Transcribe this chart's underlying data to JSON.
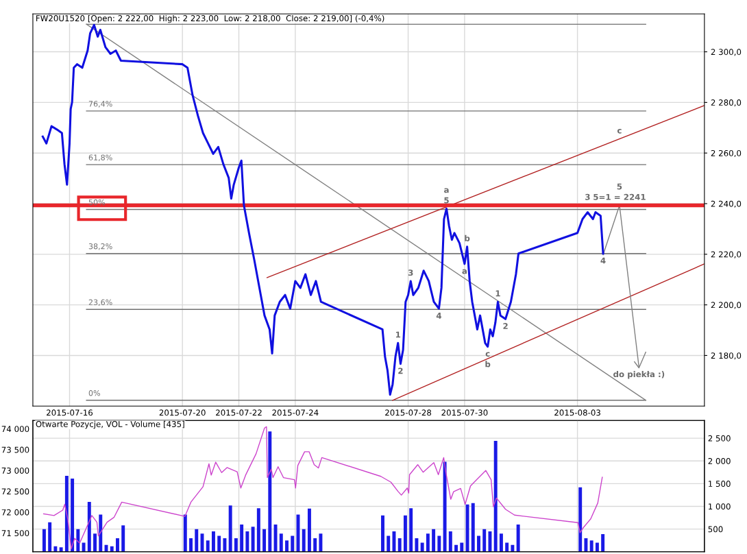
{
  "chart_data": [
    {
      "type": "line",
      "title": "FW20U1520 [Open: 2 222,00  High: 2 223,00  Low: 2 218,00  Close: 2 219,00] (-0,4%)",
      "xlim": [
        "2015-07-14T16:48",
        "2015-08-07T12:00"
      ],
      "xticks": [
        "2015-07-16",
        "2015-07-20",
        "2015-07-22",
        "2015-07-24",
        "2015-07-28",
        "2015-07-30",
        "2015-08-03"
      ],
      "ylim": [
        2160,
        2315
      ],
      "yticks": [
        {
          "value": 2180,
          "label": "2 180,0"
        },
        {
          "value": 2200,
          "label": "2 200,0"
        },
        {
          "value": 2220,
          "label": "2 220,0"
        },
        {
          "value": 2240,
          "label": "2 240,0"
        },
        {
          "value": 2260,
          "label": "2 260,0"
        },
        {
          "value": 2280,
          "label": "2 280,0"
        },
        {
          "value": 2300,
          "label": "2 300,0"
        }
      ],
      "grid": true,
      "series": [
        {
          "color": "#1010e0",
          "x": [
            "2015-07-15T01:12",
            "2015-07-15T04:19",
            "2015-07-15T08:38",
            "2015-07-15T13:12",
            "2015-07-15T17:31",
            "2015-07-15T19:41",
            "2015-07-15T21:50",
            "2015-07-16T00:00",
            "2015-07-16T00:58",
            "2015-07-16T02:10",
            "2015-07-16T03:36",
            "2015-07-16T06:29",
            "2015-07-16T10:48",
            "2015-07-16T15:22",
            "2015-07-16T17:31",
            "2015-07-16T20:53",
            "2015-07-17T00:00",
            "2015-07-17T02:10",
            "2015-07-17T06:29",
            "2015-07-17T10:48",
            "2015-07-17T15:22",
            "2015-07-17T19:41",
            "2015-07-20T00:00",
            "2015-07-20T04:19",
            "2015-07-20T08:38",
            "2015-07-20T13:12",
            "2015-07-20T17:31",
            "2015-07-20T21:50",
            "2015-07-21T02:10",
            "2015-07-21T06:29",
            "2015-07-21T10:48",
            "2015-07-21T15:22",
            "2015-07-21T17:31",
            "2015-07-21T19:41",
            "2015-07-22T00:00",
            "2015-07-22T02:10",
            "2015-07-22T04:19",
            "2015-07-22T08:38",
            "2015-07-22T13:12",
            "2015-07-22T17:31",
            "2015-07-22T21:50",
            "2015-07-23T02:10",
            "2015-07-23T04:19",
            "2015-07-23T06:29",
            "2015-07-23T10:48",
            "2015-07-23T15:22",
            "2015-07-23T19:41",
            "2015-07-24T00:00",
            "2015-07-24T04:19",
            "2015-07-24T08:38",
            "2015-07-24T13:12",
            "2015-07-24T17:31",
            "2015-07-24T21:50",
            "2015-07-27T02:10",
            "2015-07-27T04:19",
            "2015-07-27T06:29",
            "2015-07-27T08:38",
            "2015-07-27T10:48",
            "2015-07-27T13:12",
            "2015-07-27T15:22",
            "2015-07-27T17:31",
            "2015-07-27T19:41",
            "2015-07-27T21:50",
            "2015-07-28T00:00",
            "2015-07-28T02:10",
            "2015-07-28T04:19",
            "2015-07-28T08:38",
            "2015-07-28T13:12",
            "2015-07-28T17:31",
            "2015-07-28T21:50",
            "2015-07-29T02:10",
            "2015-07-29T04:19",
            "2015-07-29T06:29",
            "2015-07-29T08:38",
            "2015-07-29T10:48",
            "2015-07-29T13:12",
            "2015-07-29T15:22",
            "2015-07-29T19:41",
            "2015-07-30T00:00",
            "2015-07-30T02:10",
            "2015-07-30T04:19",
            "2015-07-30T06:29",
            "2015-07-30T08:38",
            "2015-07-30T10:48",
            "2015-07-30T13:12",
            "2015-07-30T17:31",
            "2015-07-30T19:41",
            "2015-07-30T21:50",
            "2015-07-31T00:00",
            "2015-07-31T02:10",
            "2015-07-31T04:19",
            "2015-07-31T06:29",
            "2015-07-31T10:48",
            "2015-07-31T15:22",
            "2015-07-31T19:41",
            "2015-07-31T21:50",
            "2015-08-03T00:00",
            "2015-08-03T04:19",
            "2015-08-03T08:38",
            "2015-08-03T13:12",
            "2015-08-03T15:22",
            "2015-08-03T19:41",
            "2015-08-03T21:50"
          ],
          "values": [
            2266.5,
            2263.8,
            2270.6,
            2269.3,
            2267.9,
            2255.6,
            2247.5,
            2263.8,
            2277.4,
            2280.1,
            2293.7,
            2295.1,
            2293.7,
            2300.5,
            2307.3,
            2310.6,
            2306.0,
            2308.7,
            2301.9,
            2299.2,
            2300.5,
            2296.5,
            2295.1,
            2293.7,
            2282.9,
            2274.7,
            2267.9,
            2263.8,
            2259.7,
            2262.4,
            2255.6,
            2250.2,
            2242.0,
            2247.5,
            2254.3,
            2257.0,
            2239.3,
            2228.4,
            2217.6,
            2206.7,
            2195.8,
            2190.3,
            2180.8,
            2195.8,
            2201.2,
            2203.9,
            2198.5,
            2209.4,
            2206.7,
            2212.1,
            2203.9,
            2209.4,
            2201.2,
            2190.3,
            2179.5,
            2174.0,
            2164.5,
            2168.6,
            2179.5,
            2184.9,
            2176.7,
            2182.2,
            2201.2,
            2203.9,
            2209.4,
            2203.9,
            2206.7,
            2213.5,
            2209.4,
            2201.2,
            2198.5,
            2206.7,
            2233.9,
            2238.0,
            2231.2,
            2225.7,
            2228.4,
            2224.4,
            2216.2,
            2223.0,
            2209.4,
            2201.2,
            2195.8,
            2190.3,
            2195.8,
            2184.9,
            2183.5,
            2190.3,
            2187.6,
            2192.9,
            2201.2,
            2195.8,
            2194.4,
            2201.2,
            2212.1,
            2220.3,
            2228.4,
            2233.9,
            2236.6,
            2233.9,
            2236.6,
            2235.2,
            2220.3
          ]
        },
        {
          "color": "#707070",
          "x": [
            "2015-07-16T14:24",
            "2015-08-05T10:05"
          ],
          "values": [
            2310.9,
            2310.9
          ]
        },
        {
          "color": "#707070",
          "x": [
            "2015-07-16T14:24",
            "2015-08-05T10:05"
          ],
          "values": [
            2276.6,
            2276.6
          ]
        },
        {
          "color": "#707070",
          "x": [
            "2015-07-16T14:24",
            "2015-08-05T10:05"
          ],
          "values": [
            2255.4,
            2255.4
          ]
        },
        {
          "color": "#707070",
          "x": [
            "2015-07-16T14:24",
            "2015-08-05T10:05"
          ],
          "values": [
            2237.7,
            2237.7
          ]
        },
        {
          "color": "#707070",
          "x": [
            "2015-07-16T14:24",
            "2015-08-05T10:05"
          ],
          "values": [
            2220.3,
            2220.3
          ]
        },
        {
          "color": "#707070",
          "x": [
            "2015-07-16T14:24",
            "2015-08-05T10:05"
          ],
          "values": [
            2198.2,
            2198.2
          ]
        },
        {
          "color": "#707070",
          "x": [
            "2015-07-16T14:24",
            "2015-08-05T10:05"
          ],
          "values": [
            2162.3,
            2162.3
          ]
        },
        {
          "color": "#808080",
          "x": [
            "2015-07-16T14:24",
            "2015-08-05T10:05"
          ],
          "values": [
            2310.9,
            2162.3
          ]
        },
        {
          "color": "#b22222",
          "x": [
            "2015-07-23T00:00",
            "2015-08-07T12:00"
          ],
          "values": [
            2210.8,
            2278.8
          ]
        },
        {
          "color": "#b22222",
          "x": [
            "2015-07-27T10:48",
            "2015-08-07T12:00"
          ],
          "values": [
            2162.3,
            2216.2
          ]
        },
        {
          "color": "#808080",
          "x": [
            "2015-08-03T21:50",
            "2015-08-04T11:46",
            "2015-08-05T04:19"
          ],
          "values": [
            2219.8,
            2239.3,
            2175.4
          ]
        },
        {
          "color": "#808080",
          "x": [
            "2015-08-05T00:29",
            "2015-08-05T04:19",
            "2015-08-05T10:05"
          ],
          "values": [
            2177.5,
            2175.1,
            2181.3
          ]
        }
      ],
      "ref_lines": [
        {
          "axis": "y",
          "value": 2239.3,
          "color": "#e8262b"
        }
      ],
      "annotations": [
        {
          "text": "76,4%",
          "x": "2015-07-16T14:24",
          "y": 2276.6
        },
        {
          "text": "61,8%",
          "x": "2015-07-16T14:24",
          "y": 2255.4
        },
        {
          "text": "50%",
          "x": "2015-07-16T14:24",
          "y": 2237.7
        },
        {
          "text": "38,2%",
          "x": "2015-07-16T14:24",
          "y": 2220.3
        },
        {
          "text": "23,6%",
          "x": "2015-07-16T14:24",
          "y": 2198.2
        },
        {
          "text": "0%",
          "x": "2015-07-16T14:24",
          "y": 2162.3
        },
        {
          "text": "5",
          "x": "2015-07-29T08:38",
          "y": 2238.0
        },
        {
          "text": "a",
          "x": "2015-07-29T08:38",
          "y": 2238.0
        },
        {
          "text": "b",
          "x": "2015-07-30T02:10",
          "y": 2223.0
        },
        {
          "text": "a",
          "x": "2015-07-30T00:00",
          "y": 2216.2
        },
        {
          "text": "3",
          "x": "2015-07-28T02:10",
          "y": 2209.4
        },
        {
          "text": "4",
          "x": "2015-07-29T02:10",
          "y": 2198.5
        },
        {
          "text": "1",
          "x": "2015-07-27T15:22",
          "y": 2184.9
        },
        {
          "text": "2",
          "x": "2015-07-27T17:31",
          "y": 2176.7
        },
        {
          "text": "c",
          "x": "2015-07-30T19:41",
          "y": 2183.5
        },
        {
          "text": "b",
          "x": "2015-07-30T19:41",
          "y": 2183.5
        },
        {
          "text": "1",
          "x": "2015-07-31T04:19",
          "y": 2201.2
        },
        {
          "text": "2",
          "x": "2015-07-31T10:48",
          "y": 2194.4
        },
        {
          "text": "3",
          "x": "2015-08-03T08:38",
          "y": 2239.3
        },
        {
          "text": "4",
          "x": "2015-08-03T21:50",
          "y": 2220.3
        },
        {
          "text": "5=1 = 2241",
          "x": "2015-08-04T11:46",
          "y": 2239.3
        },
        {
          "text": "5",
          "x": "2015-08-04T11:46",
          "y": 2239.3
        },
        {
          "text": "c",
          "x": "2015-08-04T11:46",
          "y": 2265.6
        },
        {
          "text": "do piekła :)",
          "x": "2015-08-05T04:19",
          "y": 2175.4
        }
      ]
    },
    {
      "type": "line",
      "title": "Otwarte Pozycje, VOL - Volume [435]",
      "xlim": [
        "2015-07-14T16:48",
        "2015-08-07T12:00"
      ],
      "xticks": [
        "2015-07-16",
        "2015-07-20",
        "2015-07-22",
        "2015-07-24",
        "2015-07-28",
        "2015-07-30",
        "2015-08-03"
      ],
      "tick_labels": "y",
      "ylim": [
        71050,
        74200
      ],
      "yticks": [
        {
          "value": 71500,
          "label": "71 500"
        },
        {
          "value": 72000,
          "label": "72 000"
        },
        {
          "value": 72500,
          "label": "72 500"
        },
        {
          "value": 73000,
          "label": "73 000"
        },
        {
          "value": 73500,
          "label": "73 500"
        },
        {
          "value": 74000,
          "label": "74 000"
        }
      ],
      "y2lim": [
        0,
        2890
      ],
      "y2ticks": [
        500,
        {
          "value": 1000,
          "label": "1 000"
        },
        {
          "value": 1500,
          "label": "1 500"
        },
        {
          "value": 2000,
          "label": "2 000"
        },
        {
          "value": 2500,
          "label": "2 500"
        }
      ],
      "grid": true,
      "series": [
        {
          "type": "bar",
          "axis": "y2",
          "color": "#1a1ae6",
          "x": [
            "2015-07-15T02:24",
            "2015-07-15T07:12",
            "2015-07-15T12:00",
            "2015-07-15T16:48",
            "2015-07-15T21:36",
            "2015-07-16T02:24",
            "2015-07-16T07:12",
            "2015-07-16T12:00",
            "2015-07-16T16:48",
            "2015-07-16T21:36",
            "2015-07-17T02:24",
            "2015-07-17T07:12",
            "2015-07-17T12:00",
            "2015-07-17T16:48",
            "2015-07-17T21:36",
            "2015-07-20T02:24",
            "2015-07-20T07:12",
            "2015-07-20T12:00",
            "2015-07-20T16:48",
            "2015-07-20T21:36",
            "2015-07-21T02:24",
            "2015-07-21T07:12",
            "2015-07-21T12:00",
            "2015-07-21T16:48",
            "2015-07-21T21:36",
            "2015-07-22T02:24",
            "2015-07-22T07:12",
            "2015-07-22T12:00",
            "2015-07-22T16:48",
            "2015-07-22T21:36",
            "2015-07-23T02:24",
            "2015-07-23T07:12",
            "2015-07-23T12:00",
            "2015-07-23T16:48",
            "2015-07-23T21:36",
            "2015-07-24T02:24",
            "2015-07-24T07:12",
            "2015-07-24T12:00",
            "2015-07-24T16:48",
            "2015-07-24T21:36",
            "2015-07-27T02:24",
            "2015-07-27T07:12",
            "2015-07-27T12:00",
            "2015-07-27T16:48",
            "2015-07-27T21:36",
            "2015-07-28T02:24",
            "2015-07-28T07:12",
            "2015-07-28T12:00",
            "2015-07-28T16:48",
            "2015-07-28T21:36",
            "2015-07-29T02:24",
            "2015-07-29T07:12",
            "2015-07-29T12:00",
            "2015-07-29T16:48",
            "2015-07-29T21:36",
            "2015-07-30T02:24",
            "2015-07-30T07:12",
            "2015-07-30T12:00",
            "2015-07-30T16:48",
            "2015-07-30T21:36",
            "2015-07-31T02:24",
            "2015-07-31T07:12",
            "2015-07-31T12:00",
            "2015-07-31T16:48",
            "2015-07-31T21:36",
            "2015-08-03T02:24",
            "2015-08-03T07:12",
            "2015-08-03T12:00",
            "2015-08-03T16:48",
            "2015-08-03T21:36"
          ],
          "values": [
            500,
            650,
            120,
            100,
            1670,
            1610,
            500,
            200,
            1100,
            400,
            820,
            150,
            120,
            300,
            580,
            820,
            300,
            500,
            400,
            250,
            450,
            350,
            300,
            1020,
            300,
            600,
            450,
            550,
            960,
            500,
            2650,
            600,
            400,
            250,
            350,
            820,
            500,
            950,
            300,
            400,
            800,
            350,
            450,
            300,
            800,
            960,
            300,
            200,
            400,
            500,
            350,
            1980,
            450,
            150,
            200,
            1040,
            1070,
            350,
            500,
            450,
            2440,
            400,
            200,
            150,
            600,
            1420,
            300,
            250,
            200,
            390
          ]
        },
        {
          "type": "line",
          "axis": "y",
          "color": "#cc44cc",
          "x": [
            "2015-07-15T01:55",
            "2015-07-15T10:48",
            "2015-07-15T18:14",
            "2015-07-15T19:55",
            "2015-07-15T22:34",
            "2015-07-16T01:26",
            "2015-07-16T04:19",
            "2015-07-16T08:38",
            "2015-07-16T18:58",
            "2015-07-16T23:17",
            "2015-07-17T00:29",
            "2015-07-17T07:55",
            "2015-07-17T13:55",
            "2015-07-17T20:24",
            "2015-07-20T02:10",
            "2015-07-20T07:12",
            "2015-07-20T17:31",
            "2015-07-20T22:34",
            "2015-07-21T00:29",
            "2015-07-21T04:19",
            "2015-07-21T09:22",
            "2015-07-21T13:55",
            "2015-07-21T22:34",
            "2015-07-22T01:41",
            "2015-07-22T05:46",
            "2015-07-22T14:38",
            "2015-07-22T21:50",
            "2015-07-22T23:31",
            "2015-07-23T00:14",
            "2015-07-23T03:36",
            "2015-07-23T05:02",
            "2015-07-23T09:22",
            "2015-07-23T13:55",
            "2015-07-23T23:17",
            "2015-07-24T00:14",
            "2015-07-24T02:10",
            "2015-07-24T07:55",
            "2015-07-24T11:46",
            "2015-07-24T16:05",
            "2015-07-24T19:41",
            "2015-07-24T22:34",
            "2015-07-27T00:43",
            "2015-07-27T09:22",
            "2015-07-27T15:22",
            "2015-07-27T18:14",
            "2015-07-27T23:17",
            "2015-07-28T00:29",
            "2015-07-28T01:12",
            "2015-07-28T08:10",
            "2015-07-28T12:43",
            "2015-07-28T18:43",
            "2015-07-28T21:50",
            "2015-07-29T01:41",
            "2015-07-29T06:14",
            "2015-07-29T07:41",
            "2015-07-29T12:14",
            "2015-07-29T14:38",
            "2015-07-29T20:38",
            "2015-07-30T00:29",
            "2015-07-30T05:02",
            "2015-07-30T10:19",
            "2015-07-30T18:00",
            "2015-07-30T22:34",
            "2015-07-31T00:29",
            "2015-07-31T03:07",
            "2015-07-31T10:48",
            "2015-07-31T18:29",
            "2015-08-03T00:29",
            "2015-08-03T02:10",
            "2015-08-03T05:02",
            "2015-08-03T11:17",
            "2015-08-03T17:17",
            "2015-08-03T21:07"
          ],
          "values": [
            71960,
            71920,
            72050,
            72190,
            71820,
            71120,
            71370,
            71260,
            71920,
            71760,
            71430,
            71760,
            71880,
            72240,
            71900,
            72240,
            72610,
            73160,
            72890,
            73200,
            72950,
            73070,
            72970,
            72580,
            72890,
            73400,
            74020,
            74050,
            72830,
            73030,
            72830,
            73090,
            72830,
            72780,
            72580,
            73120,
            73450,
            73450,
            73140,
            73060,
            73310,
            72860,
            72720,
            72500,
            72410,
            72580,
            72460,
            72900,
            73140,
            72960,
            73110,
            73190,
            72900,
            73310,
            73020,
            72310,
            72490,
            72570,
            72190,
            72630,
            72780,
            73000,
            72780,
            72130,
            72340,
            72070,
            71930,
            71750,
            71510,
            71630,
            71840,
            72220,
            72840
          ]
        }
      ]
    }
  ]
}
